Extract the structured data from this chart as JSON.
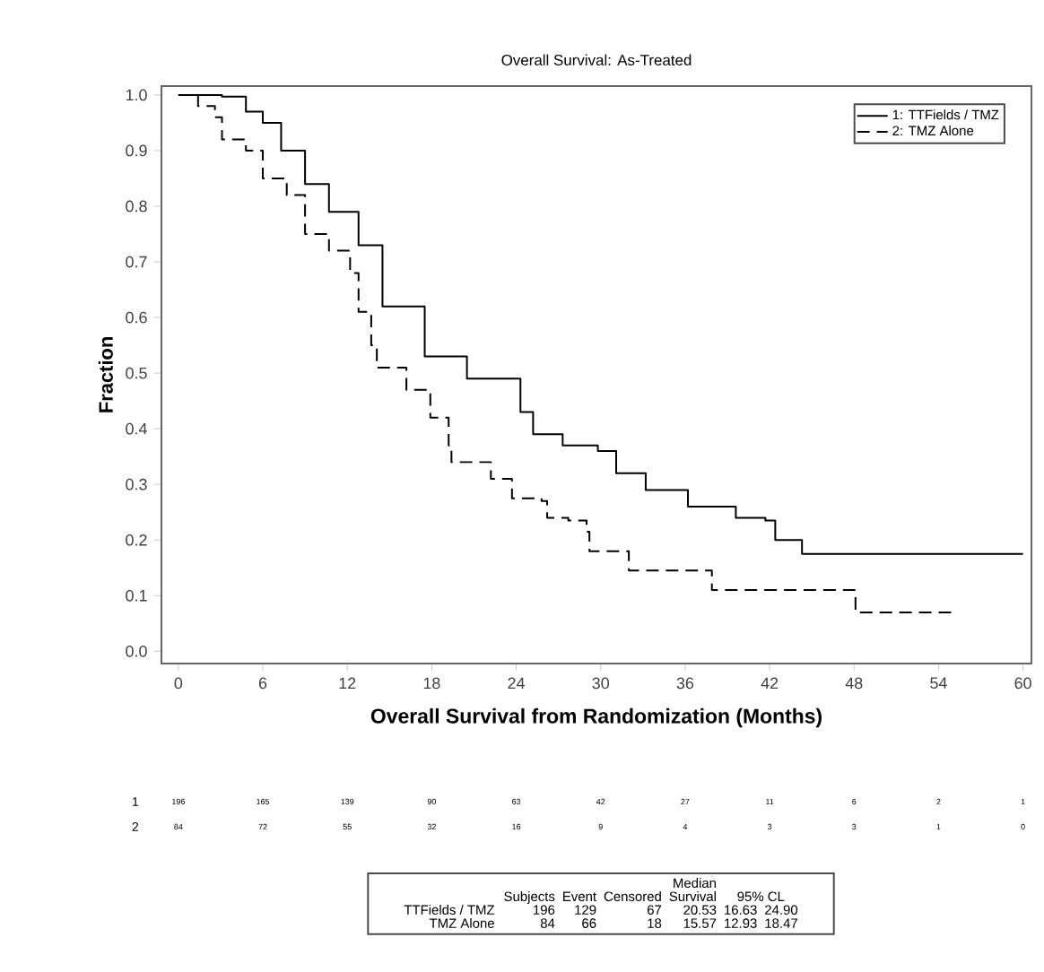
{
  "chart_data": {
    "type": "step",
    "title": "Overall Survival: As-Treated",
    "xlabel": "Overall Survival from Randomization (Months)",
    "ylabel": "Fraction",
    "xlim": [
      -1.2,
      60.6
    ],
    "ylim": [
      -0.022,
      1.016
    ],
    "xticks": [
      0,
      6,
      12,
      18,
      24,
      30,
      36,
      42,
      48,
      54,
      60
    ],
    "yticks": [
      {
        "value": 0,
        "label": "0.0"
      },
      {
        "value": 0.1,
        "label": "0.1"
      },
      {
        "value": 0.2,
        "label": "0.2"
      },
      {
        "value": 0.3,
        "label": "0.3"
      },
      {
        "value": 0.4,
        "label": "0.4"
      },
      {
        "value": 0.5,
        "label": "0.5"
      },
      {
        "value": 0.6,
        "label": "0.6"
      },
      {
        "value": 0.7,
        "label": "0.7"
      },
      {
        "value": 0.8,
        "label": "0.8"
      },
      {
        "value": 0.9,
        "label": "0.9"
      },
      {
        "value": 1,
        "label": "1.0"
      }
    ],
    "legend": "top right",
    "grid": false,
    "marker": "none",
    "series": [
      {
        "name": "1: TTFields / TMZ",
        "color": "#000000",
        "line_style": "solid",
        "x": [
          0,
          3.1,
          4.8,
          6.0,
          7.3,
          9.0,
          10.7,
          12.8,
          14.5,
          17.5,
          20.5,
          24.3,
          25.2,
          27.3,
          29.8,
          31.1,
          33.2,
          36.2,
          38.8,
          39.6,
          41.7,
          42.4,
          44.3,
          60
        ],
        "values": [
          1.0,
          0.997,
          0.97,
          0.95,
          0.9,
          0.84,
          0.79,
          0.73,
          0.62,
          0.53,
          0.49,
          0.43,
          0.39,
          0.37,
          0.36,
          0.32,
          0.29,
          0.26,
          0.26,
          0.24,
          0.235,
          0.2,
          0.175,
          0.175
        ]
      },
      {
        "name": "2: TMZ Alone",
        "color": "#000000",
        "line_style": "dashed",
        "x": [
          0,
          1.4,
          2.6,
          3.1,
          4.8,
          6.0,
          7.7,
          9.0,
          10.7,
          12.2,
          12.8,
          13.7,
          14.1,
          16.2,
          17.9,
          19.2,
          19.4,
          20.9,
          22.2,
          23.7,
          25.8,
          26.2,
          27.7,
          29.0,
          29.2,
          31.5,
          32.0,
          37.9,
          47.0,
          48.1,
          55
        ],
        "values": [
          1.0,
          0.98,
          0.96,
          0.92,
          0.9,
          0.85,
          0.82,
          0.75,
          0.72,
          0.68,
          0.61,
          0.55,
          0.51,
          0.47,
          0.42,
          0.37,
          0.34,
          0.34,
          0.31,
          0.275,
          0.27,
          0.24,
          0.235,
          0.215,
          0.18,
          0.18,
          0.145,
          0.11,
          0.11,
          0.07,
          0.07
        ]
      }
    ],
    "annotations": [
      "1",
      "196",
      "165",
      "139",
      "90",
      "63",
      "42",
      "27",
      "11",
      "6",
      "2",
      "1",
      "2",
      "84",
      "72",
      "55",
      "32",
      "16",
      "9",
      "4",
      "3",
      "3",
      "1",
      "0",
      "Median",
      "Subjects",
      "Event",
      "Censored",
      "Survival",
      "95% CL",
      "TTFields / TMZ",
      "196",
      "129",
      "67",
      "20.53",
      "16.63",
      "24.90",
      "TMZ Alone",
      "84",
      "66",
      "18",
      "15.57",
      "12.93",
      "18.47"
    ]
  }
}
